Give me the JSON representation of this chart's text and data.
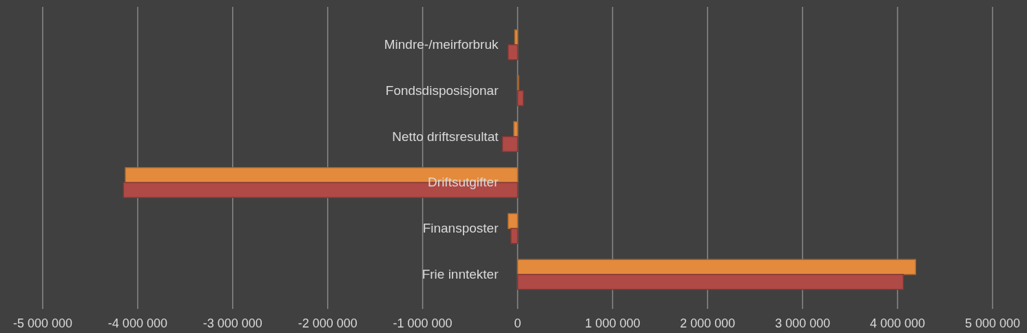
{
  "chart_data": {
    "type": "bar",
    "orientation": "horizontal",
    "categories": [
      "Mindre-/meirforbruk",
      "Fondsdisposisjonar",
      "Netto driftsresultat",
      "Driftsutgifter",
      "Finansposter",
      "Frie inntekter"
    ],
    "series": [
      {
        "color": "#e48a3c",
        "values": [
          -30000,
          10000,
          -40000,
          -4130000,
          -100000,
          4190000
        ]
      },
      {
        "color": "#b04a46",
        "values": [
          -100000,
          60000,
          -160000,
          -4150000,
          -70000,
          4060000
        ]
      }
    ],
    "xlim": [
      -5000000,
      5000000
    ],
    "xticks": [
      {
        "value": -5000000,
        "label": "-5 000 000"
      },
      {
        "value": -4000000,
        "label": "-4 000 000"
      },
      {
        "value": -3000000,
        "label": "-3 000 000"
      },
      {
        "value": -2000000,
        "label": "-2 000 000"
      },
      {
        "value": -1000000,
        "label": "-1 000 000"
      },
      0,
      {
        "value": 1000000,
        "label": "1 000 000"
      },
      {
        "value": 2000000,
        "label": "2 000 000"
      },
      {
        "value": 3000000,
        "label": "3 000 000"
      },
      {
        "value": 4000000,
        "label": "4 000 000"
      },
      {
        "value": 5000000,
        "label": "5 000 000"
      }
    ],
    "grid": "x"
  }
}
